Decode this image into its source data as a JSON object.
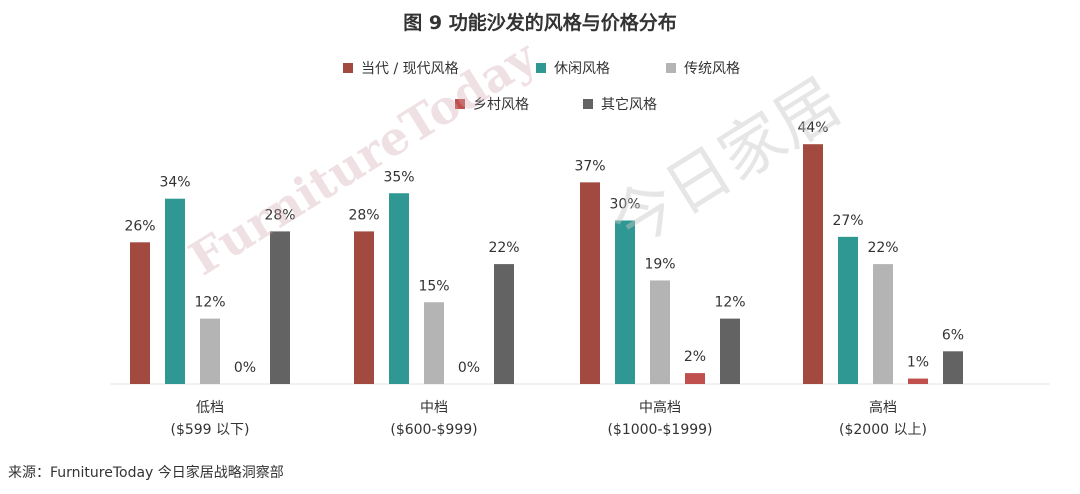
{
  "title": "图 9    功能沙发的风格与价格分布",
  "source": "来源：FurnitureToday 今日家居战略洞察部",
  "watermark": {
    "en": "FurnitureToday",
    "cn": "今日家居"
  },
  "chart_data": {
    "type": "bar",
    "categories": [
      [
        "低档",
        "($599 以下)"
      ],
      [
        "中档",
        "($600-$999)"
      ],
      [
        "中高档",
        "($1000-$1999)"
      ],
      [
        "高档",
        "($2000 以上)"
      ]
    ],
    "series": [
      {
        "name": "当代 / 现代风格",
        "color": "#a24a40",
        "values": [
          26,
          28,
          37,
          44
        ]
      },
      {
        "name": "休闲风格",
        "color": "#2f9892",
        "values": [
          34,
          35,
          30,
          27
        ]
      },
      {
        "name": "传统风格",
        "color": "#b4b4b4",
        "values": [
          12,
          15,
          19,
          22
        ]
      },
      {
        "name": "乡村风格",
        "color": "#c0504d",
        "values": [
          0,
          0,
          2,
          1
        ]
      },
      {
        "name": "其它风格",
        "color": "#636363",
        "values": [
          28,
          22,
          12,
          6
        ]
      }
    ],
    "value_suffix": "%",
    "ylim": [
      0,
      50
    ],
    "grid": false,
    "legend_position": "top-center"
  }
}
